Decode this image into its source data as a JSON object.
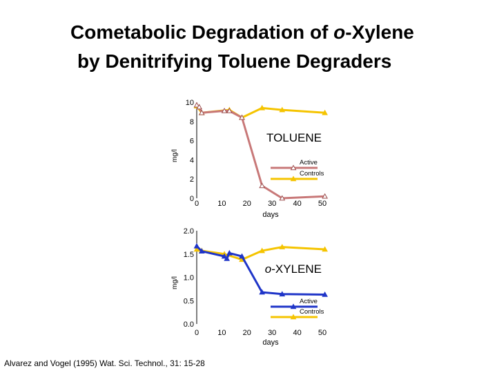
{
  "title_line1": "Cometabolic Degradation of o-Xylene",
  "title_line2": "by Denitrifying Toluene Degraders",
  "citation": "Alvarez and Vogel (1995) Wat. Sci. Technol., 31: 15-28",
  "chart_data": [
    {
      "type": "line",
      "annotation": "TOLUENE",
      "xlabel": "days",
      "ylabel": "mg/l",
      "xlim": [
        0,
        50
      ],
      "ylim": [
        0,
        10
      ],
      "x_ticks": [
        "0",
        "10",
        "20",
        "30",
        "40",
        "50"
      ],
      "y_ticks": [
        "0",
        "2",
        "4",
        "6",
        "8",
        "10"
      ],
      "legend_position": "right",
      "series": [
        {
          "name": "Active",
          "color": "#c87878",
          "marker": "open-triangle",
          "x": [
            0,
            1,
            2,
            11,
            13,
            18,
            26,
            34,
            51
          ],
          "y": [
            9.7,
            9.5,
            8.9,
            9.1,
            9.1,
            8.4,
            1.3,
            0.0,
            0.2
          ]
        },
        {
          "name": "Controls",
          "color": "#f5c400",
          "marker": "triangle",
          "x": [
            0,
            2,
            13,
            18,
            26,
            34,
            51
          ],
          "y": [
            9.6,
            8.9,
            9.2,
            8.4,
            9.4,
            9.2,
            8.9
          ]
        }
      ]
    },
    {
      "type": "line",
      "annotation_prefix": "o",
      "annotation": "-XYLENE",
      "xlabel": "days",
      "ylabel": "mg/l",
      "xlim": [
        0,
        50
      ],
      "ylim": [
        0,
        2.0
      ],
      "x_ticks": [
        "0",
        "10",
        "20",
        "30",
        "40",
        "50"
      ],
      "y_ticks": [
        "0.0",
        "0.5",
        "1.0",
        "1.5",
        "2.0"
      ],
      "legend_position": "right",
      "series": [
        {
          "name": "Active",
          "color": "#1f35c8",
          "marker": "triangle",
          "x": [
            0,
            2,
            11,
            12,
            13,
            18,
            26,
            34,
            51
          ],
          "y": [
            1.67,
            1.56,
            1.45,
            1.4,
            1.52,
            1.45,
            0.68,
            0.64,
            0.63
          ]
        },
        {
          "name": "Controls",
          "color": "#f5c400",
          "marker": "triangle",
          "x": [
            0,
            2,
            11,
            18,
            26,
            34,
            51
          ],
          "y": [
            1.6,
            1.57,
            1.5,
            1.38,
            1.57,
            1.65,
            1.6
          ]
        }
      ]
    }
  ]
}
